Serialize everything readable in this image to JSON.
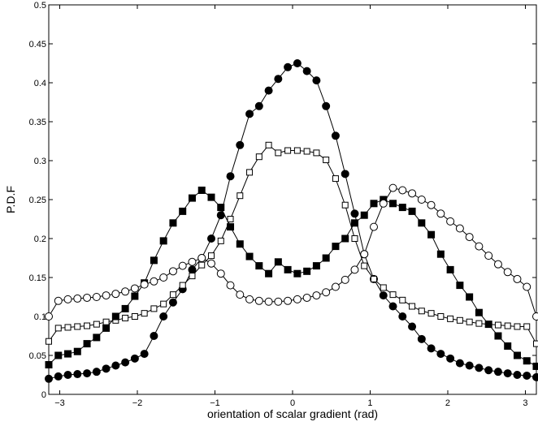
{
  "chart_data": {
    "type": "line",
    "title": "",
    "xlabel": "orientation of scalar gradient (rad)",
    "ylabel": "P.D.F",
    "xlim": [
      -3.1416,
      3.1416
    ],
    "ylim": [
      0,
      0.5
    ],
    "xticks": [
      -3,
      -2,
      -1,
      0,
      1,
      2,
      3
    ],
    "xtick_labels": [
      "−3",
      "−2",
      "−1",
      "0",
      "1",
      "2",
      "3"
    ],
    "yticks": [
      0,
      0.05,
      0.1,
      0.15,
      0.2,
      0.25,
      0.3,
      0.35,
      0.4,
      0.45,
      0.5
    ],
    "ytick_labels": [
      "0",
      "0.05",
      "0.1",
      "0.15",
      "0.2",
      "0.25",
      "0.3",
      "0.35",
      "0.4",
      "0.45",
      "0.5"
    ],
    "grid": false,
    "x": [
      -3.1416,
      -3.0184,
      -2.8952,
      -2.772,
      -2.6488,
      -2.5256,
      -2.4024,
      -2.2792,
      -2.156,
      -2.0328,
      -1.9096,
      -1.7864,
      -1.6632,
      -1.54,
      -1.4168,
      -1.2936,
      -1.1704,
      -1.0472,
      -0.924,
      -0.8008,
      -0.6776,
      -0.5544,
      -0.4312,
      -0.308,
      -0.1848,
      -0.0616,
      0.0616,
      0.1848,
      0.308,
      0.4312,
      0.5544,
      0.6776,
      0.8008,
      0.924,
      1.0472,
      1.1704,
      1.2936,
      1.4168,
      1.54,
      1.6632,
      1.7864,
      1.9096,
      2.0328,
      2.156,
      2.2792,
      2.4024,
      2.5256,
      2.6488,
      2.772,
      2.8952,
      3.0184,
      3.1416
    ],
    "series": [
      {
        "marker": "filled-circle",
        "values": [
          0.02,
          0.023,
          0.025,
          0.026,
          0.027,
          0.029,
          0.033,
          0.037,
          0.041,
          0.046,
          0.052,
          0.075,
          0.1,
          0.118,
          0.135,
          0.16,
          0.175,
          0.2,
          0.23,
          0.28,
          0.32,
          0.36,
          0.37,
          0.39,
          0.405,
          0.42,
          0.425,
          0.415,
          0.403,
          0.37,
          0.332,
          0.283,
          0.232,
          0.18,
          0.148,
          0.127,
          0.113,
          0.1,
          0.087,
          0.071,
          0.059,
          0.052,
          0.046,
          0.04,
          0.037,
          0.034,
          0.031,
          0.029,
          0.027,
          0.025,
          0.024,
          0.022
        ]
      },
      {
        "marker": "open-square",
        "values": [
          0.068,
          0.085,
          0.086,
          0.087,
          0.088,
          0.09,
          0.093,
          0.095,
          0.098,
          0.1,
          0.104,
          0.11,
          0.116,
          0.128,
          0.14,
          0.152,
          0.166,
          0.178,
          0.197,
          0.225,
          0.255,
          0.285,
          0.305,
          0.32,
          0.31,
          0.313,
          0.313,
          0.312,
          0.31,
          0.301,
          0.277,
          0.243,
          0.2,
          0.165,
          0.148,
          0.137,
          0.128,
          0.121,
          0.113,
          0.107,
          0.104,
          0.1,
          0.097,
          0.095,
          0.093,
          0.091,
          0.09,
          0.089,
          0.088,
          0.087,
          0.087,
          0.065
        ]
      },
      {
        "marker": "filled-square",
        "values": [
          0.038,
          0.05,
          0.052,
          0.055,
          0.065,
          0.073,
          0.085,
          0.1,
          0.11,
          0.126,
          0.143,
          0.172,
          0.197,
          0.22,
          0.235,
          0.252,
          0.262,
          0.253,
          0.24,
          0.215,
          0.193,
          0.177,
          0.165,
          0.155,
          0.17,
          0.16,
          0.155,
          0.158,
          0.165,
          0.175,
          0.19,
          0.2,
          0.22,
          0.23,
          0.245,
          0.25,
          0.245,
          0.24,
          0.235,
          0.22,
          0.205,
          0.18,
          0.16,
          0.14,
          0.125,
          0.105,
          0.09,
          0.075,
          0.062,
          0.05,
          0.043,
          0.036
        ]
      },
      {
        "marker": "open-circle",
        "values": [
          0.1,
          0.12,
          0.122,
          0.123,
          0.124,
          0.125,
          0.127,
          0.129,
          0.132,
          0.136,
          0.141,
          0.145,
          0.15,
          0.158,
          0.165,
          0.17,
          0.175,
          0.168,
          0.155,
          0.14,
          0.128,
          0.122,
          0.12,
          0.119,
          0.119,
          0.12,
          0.122,
          0.124,
          0.127,
          0.131,
          0.138,
          0.147,
          0.16,
          0.18,
          0.215,
          0.245,
          0.265,
          0.262,
          0.258,
          0.25,
          0.243,
          0.232,
          0.222,
          0.213,
          0.202,
          0.19,
          0.178,
          0.167,
          0.157,
          0.148,
          0.138,
          0.1
        ]
      }
    ]
  }
}
